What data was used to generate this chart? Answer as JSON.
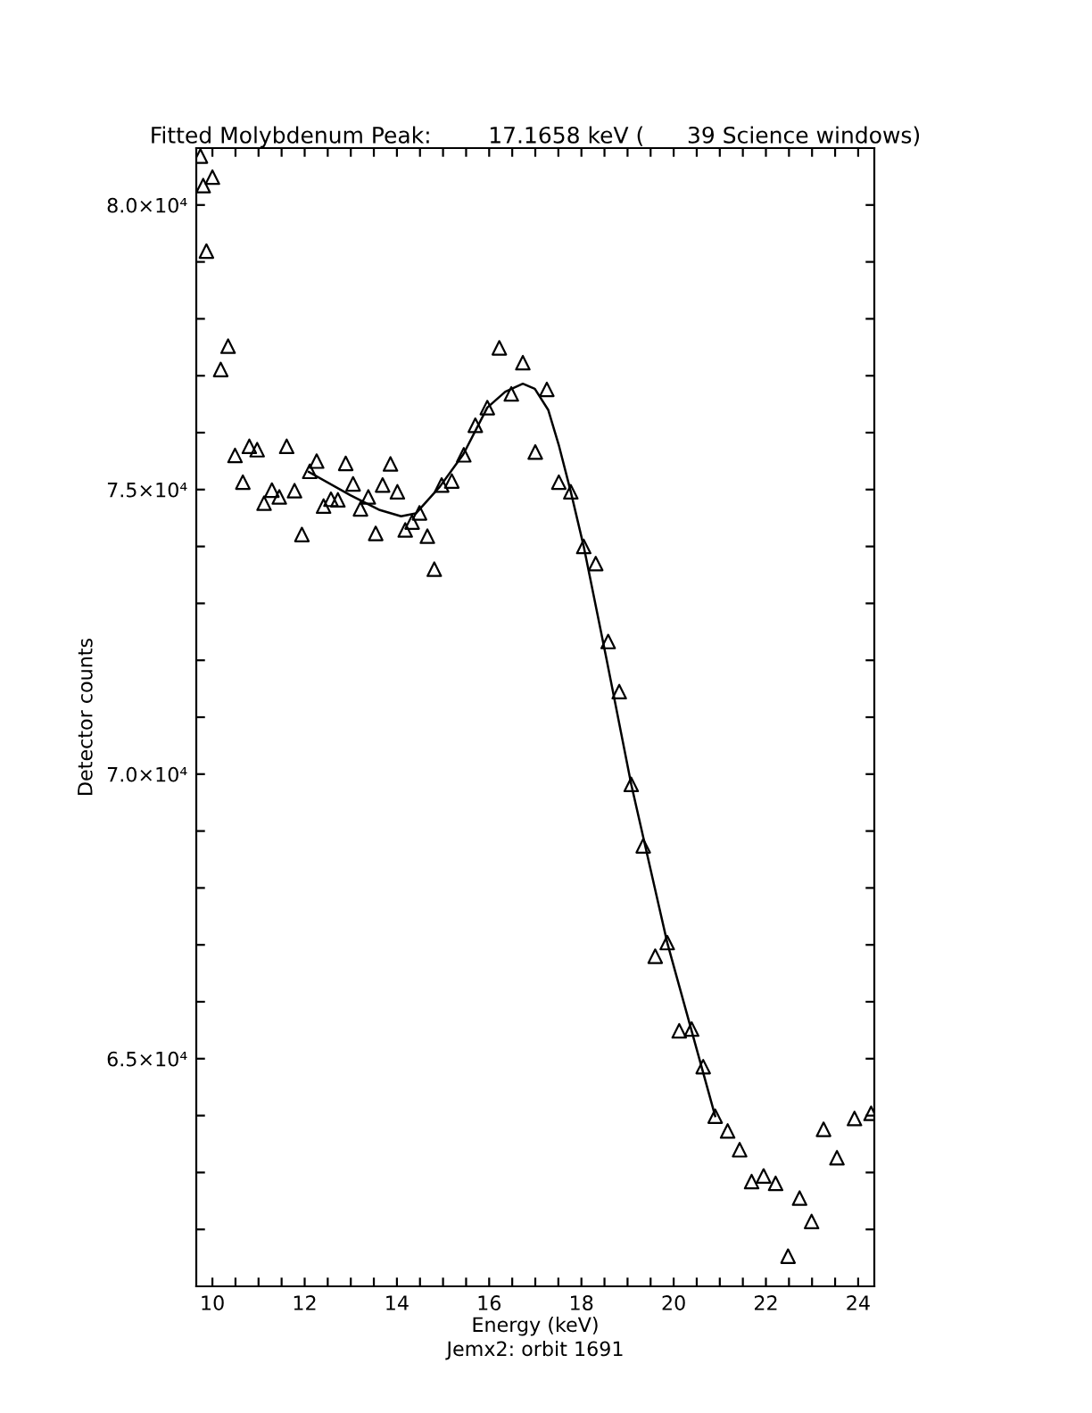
{
  "chart_data": {
    "type": "scatter",
    "title": "Fitted Molybdenum Peak:        17.1658 keV (      39 Science windows)",
    "xlabel": "Energy (keV)",
    "ylabel": "Detector counts",
    "annotations": [
      "Jemx2: orbit 1691"
    ],
    "xlim": [
      9.65,
      24.35
    ],
    "xticks": [
      10,
      {
        "value": 10.5,
        "label": null
      },
      {
        "value": 11,
        "label": null
      },
      {
        "value": 11.5,
        "label": null
      },
      12,
      {
        "value": 12.5,
        "label": null
      },
      {
        "value": 13,
        "label": null
      },
      {
        "value": 13.5,
        "label": null
      },
      14,
      {
        "value": 14.5,
        "label": null
      },
      {
        "value": 15,
        "label": null
      },
      {
        "value": 15.5,
        "label": null
      },
      16,
      {
        "value": 16.5,
        "label": null
      },
      {
        "value": 17,
        "label": null
      },
      {
        "value": 17.5,
        "label": null
      },
      18,
      {
        "value": 18.5,
        "label": null
      },
      {
        "value": 19,
        "label": null
      },
      {
        "value": 19.5,
        "label": null
      },
      20,
      {
        "value": 20.5,
        "label": null
      },
      {
        "value": 21,
        "label": null
      },
      {
        "value": 21.5,
        "label": null
      },
      22,
      {
        "value": 22.5,
        "label": null
      },
      {
        "value": 23,
        "label": null
      },
      {
        "value": 23.5,
        "label": null
      },
      24
    ],
    "ylim": [
      61000,
      81000
    ],
    "yticks": [
      {
        "value": 62000,
        "label": null
      },
      {
        "value": 63000,
        "label": null
      },
      {
        "value": 64000,
        "label": null
      },
      {
        "value": 65000,
        "label": "6.5×10⁴"
      },
      {
        "value": 66000,
        "label": null
      },
      {
        "value": 67000,
        "label": null
      },
      {
        "value": 68000,
        "label": null
      },
      {
        "value": 69000,
        "label": null
      },
      {
        "value": 70000,
        "label": "7.0×10⁴"
      },
      {
        "value": 71000,
        "label": null
      },
      {
        "value": 72000,
        "label": null
      },
      {
        "value": 73000,
        "label": null
      },
      {
        "value": 74000,
        "label": null
      },
      {
        "value": 75000,
        "label": "7.5×10⁴"
      },
      {
        "value": 76000,
        "label": null
      },
      {
        "value": 77000,
        "label": null
      },
      {
        "value": 78000,
        "label": null
      },
      {
        "value": 79000,
        "label": null
      },
      {
        "value": 80000,
        "label": "8.0×10⁴"
      }
    ],
    "grid": false,
    "legend": false,
    "series": [
      {
        "marker": "triangle",
        "color": "#000000",
        "x": [
          9.74,
          9.8,
          9.87,
          10.0,
          10.18,
          10.34,
          10.49,
          10.66,
          10.8,
          10.97,
          11.12,
          11.29,
          11.45,
          11.61,
          11.78,
          11.94,
          12.11,
          12.26,
          12.41,
          12.57,
          12.72,
          12.89,
          13.05,
          13.21,
          13.38,
          13.54,
          13.69,
          13.86,
          14.01,
          14.18,
          14.33,
          14.49,
          14.66,
          14.81,
          14.97,
          15.19,
          15.45,
          15.7,
          15.96,
          16.22,
          16.48,
          16.73,
          17.0,
          17.25,
          17.51,
          17.77,
          18.05,
          18.31,
          18.58,
          18.82,
          19.08,
          19.34,
          19.6,
          19.86,
          20.12,
          20.39,
          20.64,
          20.9,
          21.17,
          21.43,
          21.69,
          21.95,
          22.21,
          22.48,
          22.73,
          22.99,
          23.25,
          23.54,
          23.92,
          24.28
        ],
        "values": [
          80860,
          80340,
          79190,
          80490,
          77110,
          77520,
          75600,
          75130,
          75760,
          75700,
          74760,
          74990,
          74870,
          75760,
          74980,
          74210,
          75320,
          75500,
          74710,
          74830,
          74820,
          75460,
          75100,
          74660,
          74870,
          74230,
          75080,
          75450,
          74960,
          74290,
          74430,
          74590,
          74180,
          73600,
          75080,
          75150,
          75610,
          76130,
          76440,
          77490,
          76680,
          77230,
          75660,
          76760,
          75130,
          74960,
          74000,
          73700,
          72330,
          71450,
          69820,
          68740,
          66800,
          67040,
          65490,
          65520,
          64860,
          63990,
          63730,
          63400,
          62840,
          62940,
          62810,
          61530,
          62550,
          62140,
          63760,
          63260,
          63950,
          64040
        ]
      },
      {
        "type": "line",
        "marker": "none",
        "line_style": "solid",
        "color": "#000000",
        "x": [
          12.09,
          12.99,
          13.63,
          14.09,
          14.41,
          14.93,
          15.44,
          15.96,
          16.35,
          16.73,
          16.99,
          17.28,
          17.51,
          17.77,
          18.05,
          18.54,
          19.08,
          19.86,
          20.9
        ],
        "values": [
          75310,
          74900,
          74640,
          74530,
          74580,
          75050,
          75620,
          76440,
          76720,
          76860,
          76770,
          76400,
          75780,
          74960,
          74000,
          72040,
          69820,
          67040,
          63990
        ]
      }
    ]
  }
}
